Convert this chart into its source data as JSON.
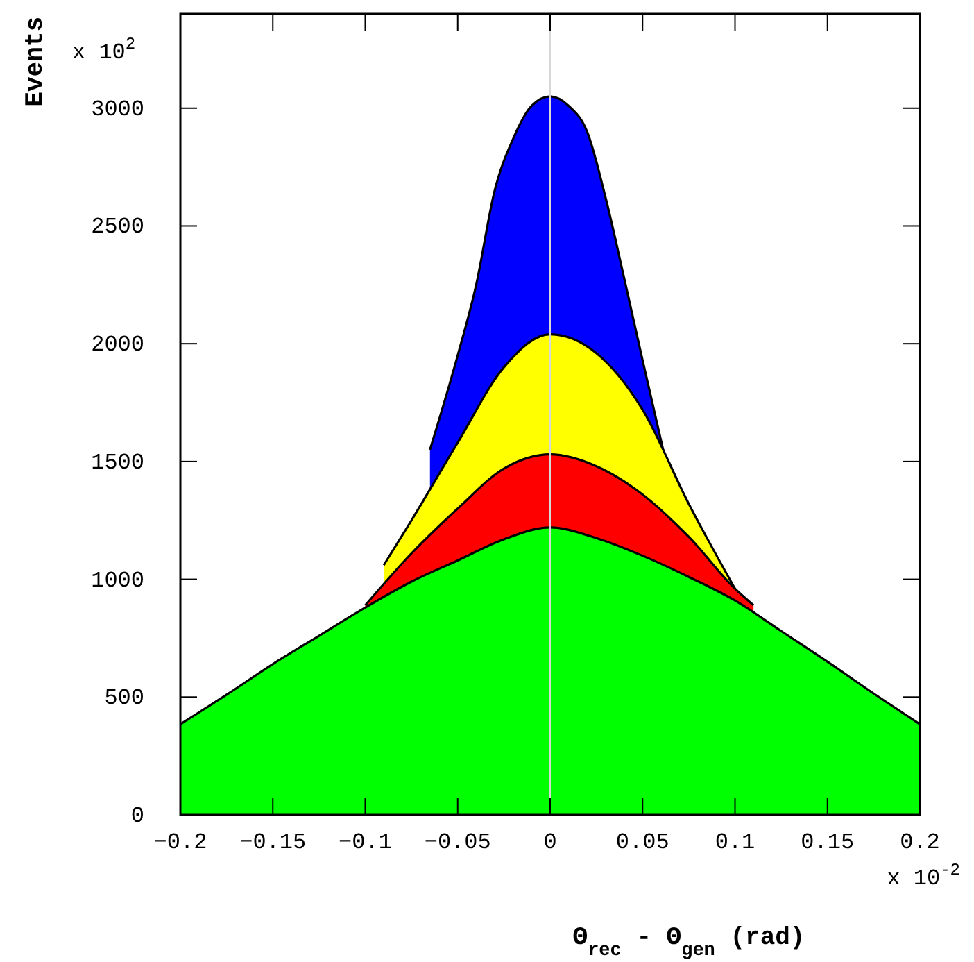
{
  "chart_data": {
    "type": "area",
    "ylabel": "Events",
    "xlabel": "Θ$_{rec}$ - Θ$_{gen}$ (rad)",
    "annotations": [
      "x 10$^{2}$",
      "x 10$^{-2}$"
    ],
    "xlim": [
      -0.2,
      0.2
    ],
    "xticks": [
      -0.2,
      -0.15,
      -0.1,
      -0.05,
      0,
      0.05,
      0.1,
      0.15,
      0.2
    ],
    "ylim": [
      0,
      3400
    ],
    "yticks": [
      0,
      500,
      1000,
      1500,
      2000,
      2500,
      3000
    ],
    "grid": false,
    "line_style": "solid",
    "marker": "none",
    "ref_lines": [
      {
        "axis": "x",
        "value": 0,
        "color": "#d8d8d8"
      }
    ],
    "series": [
      {
        "color": "#0000ff",
        "x": [
          -0.065,
          -0.05,
          -0.04,
          -0.03,
          -0.02,
          -0.01,
          0,
          0.01,
          0.02,
          0.03,
          0.04,
          0.05,
          0.062
        ],
        "values": [
          1550,
          1950,
          2250,
          2650,
          2870,
          3010,
          3050,
          3010,
          2900,
          2620,
          2280,
          1930,
          1520
        ]
      },
      {
        "color": "#ffff00",
        "x": [
          -0.09,
          -0.075,
          -0.05,
          -0.025,
          0,
          0.025,
          0.05,
          0.075,
          0.1
        ],
        "values": [
          1060,
          1250,
          1580,
          1900,
          2040,
          1960,
          1720,
          1320,
          960
        ]
      },
      {
        "color": "#ff0000",
        "x": [
          -0.1,
          -0.075,
          -0.05,
          -0.025,
          0,
          0.025,
          0.05,
          0.075,
          0.1,
          0.11
        ],
        "values": [
          890,
          1110,
          1300,
          1470,
          1530,
          1480,
          1360,
          1180,
          960,
          890
        ]
      },
      {
        "color": "#00ff00",
        "x": [
          -0.2,
          -0.175,
          -0.15,
          -0.125,
          -0.1,
          -0.075,
          -0.05,
          -0.025,
          0,
          0.025,
          0.05,
          0.075,
          0.1,
          0.125,
          0.15,
          0.175,
          0.2
        ],
        "values": [
          385,
          510,
          640,
          760,
          880,
          990,
          1080,
          1170,
          1220,
          1175,
          1100,
          1010,
          910,
          780,
          650,
          515,
          385
        ]
      }
    ]
  }
}
